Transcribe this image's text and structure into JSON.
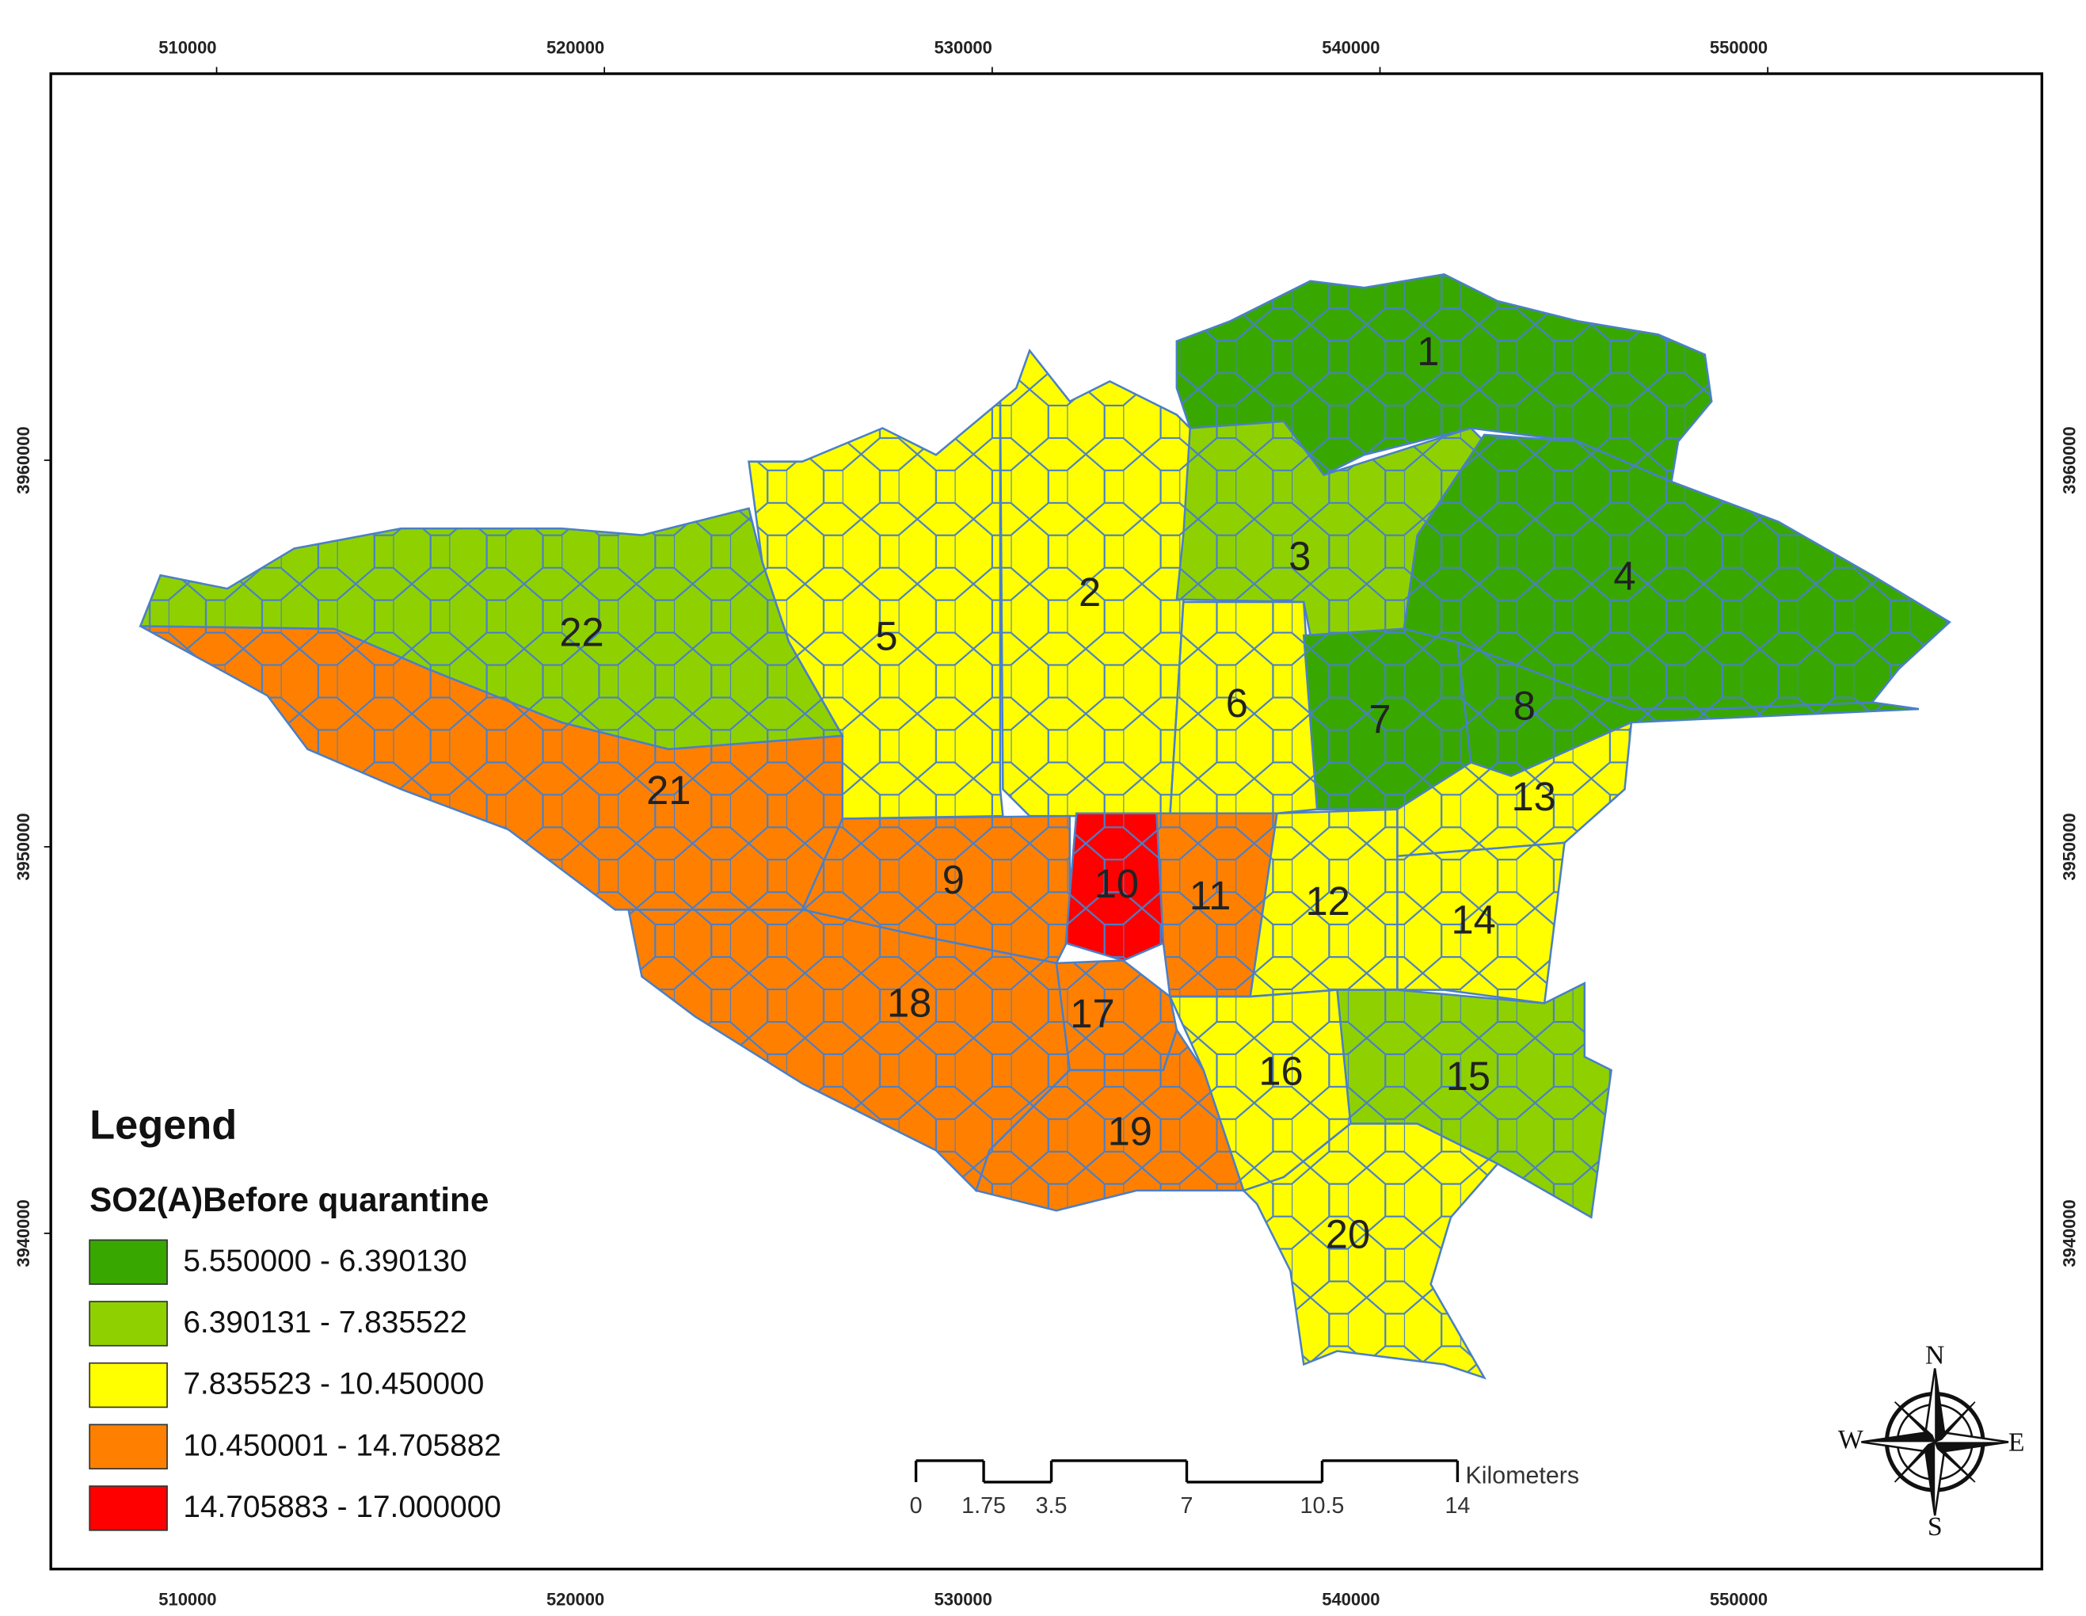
{
  "map": {
    "x_ticks": [
      510000,
      520000,
      530000,
      540000,
      550000
    ],
    "y_ticks": [
      3960000,
      3950000,
      3940000
    ],
    "legend": {
      "title": "Legend",
      "subtitle": "SO2(A)Before quarantine",
      "items": [
        {
          "label": "5.550000 - 6.390130",
          "color": "#38a800"
        },
        {
          "label": "6.390131 - 7.835522",
          "color": "#8fd100"
        },
        {
          "label": "7.835523 - 10.450000",
          "color": "#ffff00"
        },
        {
          "label": "10.450001 - 14.705882",
          "color": "#ff8000"
        },
        {
          "label": "14.705883 - 17.000000",
          "color": "#ff0000"
        }
      ]
    },
    "districts": [
      {
        "label": "1",
        "class": 0
      },
      {
        "label": "2",
        "class": 2
      },
      {
        "label": "3",
        "class": 1
      },
      {
        "label": "4",
        "class": 0
      },
      {
        "label": "5",
        "class": 2
      },
      {
        "label": "6",
        "class": 2
      },
      {
        "label": "7",
        "class": 0
      },
      {
        "label": "8",
        "class": 0
      },
      {
        "label": "9",
        "class": 3
      },
      {
        "label": "10",
        "class": 4
      },
      {
        "label": "11",
        "class": 3
      },
      {
        "label": "12",
        "class": 2
      },
      {
        "label": "13",
        "class": 2
      },
      {
        "label": "14",
        "class": 2
      },
      {
        "label": "15",
        "class": 1
      },
      {
        "label": "16",
        "class": 2
      },
      {
        "label": "17",
        "class": 3
      },
      {
        "label": "18",
        "class": 3
      },
      {
        "label": "19",
        "class": 3
      },
      {
        "label": "20",
        "class": 2
      },
      {
        "label": "21",
        "class": 3
      },
      {
        "label": "22",
        "class": 1
      }
    ],
    "scale_bar": {
      "ticks": [
        0,
        1.75,
        3.5,
        7,
        10.5,
        14
      ],
      "unit": "Kilometers"
    },
    "compass": {
      "n": "N",
      "e": "E",
      "s": "S",
      "w": "W"
    }
  }
}
